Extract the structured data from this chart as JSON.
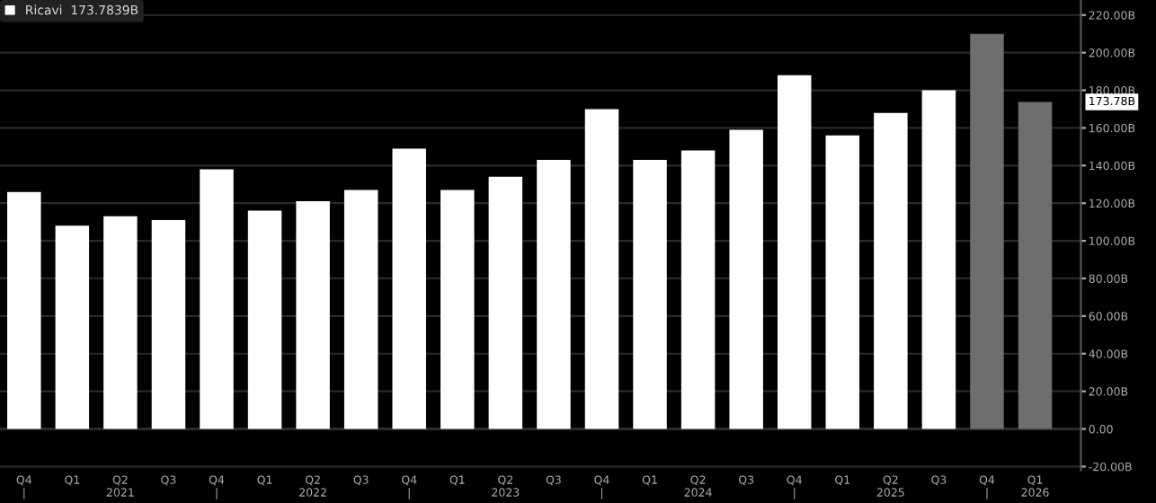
{
  "chart_data": {
    "type": "bar",
    "categories": [
      "Q4\n|",
      "Q1",
      "Q2\n2021",
      "Q3",
      "Q4\n|",
      "Q1",
      "Q2\n2022",
      "Q3",
      "Q4\n|",
      "Q1",
      "Q2\n2023",
      "Q3",
      "Q4\n|",
      "Q1",
      "Q2\n2024",
      "Q3",
      "Q4\n|",
      "Q1",
      "Q2\n2025",
      "Q3",
      "Q4\n|",
      "Q1\n2026"
    ],
    "series": [
      {
        "name": "Ricavi  173.7839B",
        "color": "#ffffff",
        "colors": [
          "#ffffff",
          "#ffffff",
          "#ffffff",
          "#ffffff",
          "#ffffff",
          "#ffffff",
          "#ffffff",
          "#ffffff",
          "#ffffff",
          "#ffffff",
          "#ffffff",
          "#ffffff",
          "#ffffff",
          "#ffffff",
          "#ffffff",
          "#ffffff",
          "#ffffff",
          "#ffffff",
          "#ffffff",
          "#ffffff",
          "#6e6e6e",
          "#6e6e6e"
        ],
        "values": [
          126,
          108,
          113,
          111,
          138,
          116,
          121,
          127,
          149,
          127,
          134,
          143,
          170,
          143,
          148,
          159,
          188,
          156,
          168,
          180,
          210,
          173.78
        ]
      }
    ],
    "annotations": [
      "173.78B"
    ],
    "ylim": [
      -22,
      228
    ],
    "yticks": [
      {
        "value": -20,
        "label": "-20.00B"
      },
      {
        "value": 0,
        "label": "0.00"
      },
      {
        "value": 20,
        "label": "20.00B"
      },
      {
        "value": 40,
        "label": "40.00B"
      },
      {
        "value": 60,
        "label": "60.00B"
      },
      {
        "value": 80,
        "label": "80.00B"
      },
      {
        "value": 100,
        "label": "100.00B"
      },
      {
        "value": 120,
        "label": "120.00B"
      },
      {
        "value": 140,
        "label": "140.00B"
      },
      {
        "value": 160,
        "label": "160.00B"
      },
      {
        "value": 180,
        "label": "180.00B"
      },
      {
        "value": 200,
        "label": "200.00B"
      },
      {
        "value": 220,
        "label": "220.00B"
      }
    ],
    "grid": "y",
    "legend": "top left"
  }
}
